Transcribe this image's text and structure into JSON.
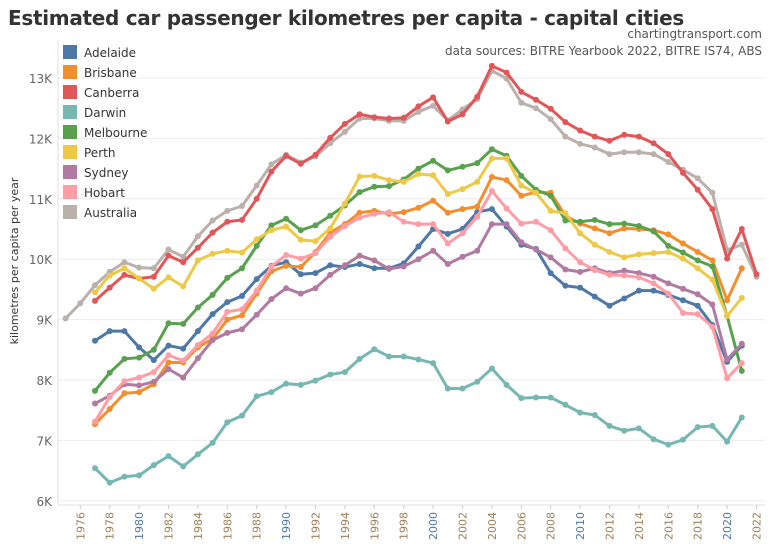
{
  "chart_data": {
    "type": "line",
    "title": "Estimated car passenger kilometres per capita - capital cities",
    "credit": "chartingtransport.com",
    "sources": "data sources: BITRE Yearbook 2022, BITRE IS74, ABS",
    "ylabel": "kilometres per capita per year",
    "xlabel": "",
    "ylim": [
      6,
      13
    ],
    "y_ticks": [
      "6K",
      "7K",
      "8K",
      "9K",
      "10K",
      "11K",
      "12K",
      "13K"
    ],
    "x_ticks": [
      "1976",
      "1978",
      "1980",
      "1982",
      "1984",
      "1986",
      "1988",
      "1990",
      "1992",
      "1994",
      "1996",
      "1998",
      "2000",
      "2002",
      "2004",
      "2006",
      "2008",
      "2010",
      "2012",
      "2014",
      "2016",
      "2018",
      "2020",
      "2022"
    ],
    "grid": true,
    "legend_position": "top-left",
    "series": [
      {
        "name": "Australia",
        "color": "#bab0ac",
        "start": 1975,
        "values": [
          9.02,
          9.27,
          9.57,
          9.79,
          9.95,
          9.86,
          9.85,
          10.16,
          10.04,
          10.38,
          10.64,
          10.8,
          10.88,
          11.22,
          11.57,
          11.73,
          11.6,
          11.7,
          11.92,
          12.11,
          12.33,
          12.33,
          12.29,
          12.29,
          12.44,
          12.54,
          12.3,
          12.48,
          12.65,
          13.12,
          12.99,
          12.59,
          12.5,
          12.32,
          12.03,
          11.91,
          11.85,
          11.74,
          11.77,
          11.77,
          11.74,
          11.61,
          11.48,
          11.34,
          11.1,
          10.15,
          10.24,
          9.71
        ]
      },
      {
        "name": "Adelaide",
        "color": "#4e79a7",
        "start": 1977,
        "values": [
          8.65,
          8.81,
          8.81,
          8.54,
          8.33,
          8.57,
          8.52,
          8.81,
          9.09,
          9.29,
          9.39,
          9.67,
          9.89,
          9.95,
          9.75,
          9.77,
          9.9,
          9.87,
          9.92,
          9.85,
          9.85,
          9.93,
          10.21,
          10.5,
          10.42,
          10.5,
          10.78,
          10.83,
          10.54,
          10.24,
          10.17,
          9.77,
          9.56,
          9.53,
          9.38,
          9.23,
          9.35,
          9.48,
          9.48,
          9.41,
          9.32,
          9.23,
          8.91,
          8.3,
          8.57
        ]
      },
      {
        "name": "Brisbane",
        "color": "#f28e2b",
        "start": 1977,
        "values": [
          7.27,
          7.52,
          7.78,
          7.8,
          7.93,
          8.29,
          8.29,
          8.54,
          8.68,
          9.0,
          9.07,
          9.43,
          9.8,
          9.89,
          9.87,
          10.12,
          10.44,
          10.58,
          10.77,
          10.8,
          10.75,
          10.78,
          10.85,
          10.97,
          10.77,
          10.83,
          10.87,
          11.36,
          11.31,
          11.05,
          11.11,
          11.1,
          10.72,
          10.59,
          10.51,
          10.43,
          10.51,
          10.5,
          10.48,
          10.41,
          10.26,
          10.12,
          9.98,
          9.32,
          9.85
        ]
      },
      {
        "name": "Canberra",
        "color": "#e15759",
        "start": 1977,
        "values": [
          9.31,
          9.53,
          9.74,
          9.68,
          9.71,
          10.06,
          9.95,
          10.19,
          10.44,
          10.62,
          10.65,
          11.0,
          11.45,
          11.71,
          11.58,
          11.73,
          12.01,
          12.24,
          12.4,
          12.35,
          12.33,
          12.34,
          12.53,
          12.68,
          12.28,
          12.4,
          12.69,
          13.2,
          13.09,
          12.77,
          12.64,
          12.49,
          12.27,
          12.13,
          12.03,
          11.96,
          12.06,
          12.03,
          11.92,
          11.74,
          11.43,
          11.15,
          10.83,
          10.01,
          10.5,
          9.75
        ]
      },
      {
        "name": "Darwin",
        "color": "#76b7b2",
        "start": 1977,
        "values": [
          6.54,
          6.3,
          6.4,
          6.42,
          6.59,
          6.74,
          6.57,
          6.77,
          6.96,
          7.3,
          7.41,
          7.73,
          7.8,
          7.94,
          7.92,
          7.99,
          8.09,
          8.13,
          8.35,
          8.51,
          8.39,
          8.39,
          8.34,
          8.28,
          7.86,
          7.86,
          7.97,
          8.19,
          7.92,
          7.7,
          7.71,
          7.71,
          7.59,
          7.46,
          7.42,
          7.24,
          7.16,
          7.2,
          7.02,
          6.93,
          7.01,
          7.22,
          7.24,
          6.98,
          7.38
        ]
      },
      {
        "name": "Melbourne",
        "color": "#59a14f",
        "start": 1977,
        "values": [
          7.82,
          8.12,
          8.35,
          8.37,
          8.5,
          8.94,
          8.93,
          9.2,
          9.41,
          9.69,
          9.85,
          10.22,
          10.56,
          10.67,
          10.48,
          10.56,
          10.72,
          10.89,
          11.11,
          11.2,
          11.21,
          11.32,
          11.5,
          11.63,
          11.47,
          11.53,
          11.59,
          11.82,
          11.71,
          11.38,
          11.15,
          11.05,
          10.64,
          10.62,
          10.65,
          10.58,
          10.59,
          10.55,
          10.46,
          10.22,
          10.11,
          9.98,
          9.88,
          9.06,
          8.15
        ]
      },
      {
        "name": "Perth",
        "color": "#edc948",
        "start": 1977,
        "values": [
          9.45,
          9.73,
          9.85,
          9.68,
          9.51,
          9.7,
          9.55,
          9.98,
          10.09,
          10.14,
          10.11,
          10.33,
          10.48,
          10.54,
          10.32,
          10.3,
          10.51,
          10.92,
          11.37,
          11.38,
          11.31,
          11.28,
          11.41,
          11.39,
          11.08,
          11.16,
          11.28,
          11.67,
          11.67,
          11.22,
          11.1,
          10.8,
          10.76,
          10.43,
          10.24,
          10.12,
          10.03,
          10.08,
          10.1,
          10.12,
          10.01,
          9.85,
          9.66,
          9.06,
          9.36
        ]
      },
      {
        "name": "Sydney",
        "color": "#b07aa1",
        "start": 1977,
        "values": [
          7.61,
          7.74,
          7.93,
          7.91,
          7.97,
          8.18,
          8.04,
          8.36,
          8.66,
          8.78,
          8.84,
          9.08,
          9.34,
          9.52,
          9.43,
          9.52,
          9.74,
          9.9,
          10.06,
          9.98,
          9.84,
          9.88,
          10.0,
          10.14,
          9.92,
          10.04,
          10.14,
          10.58,
          10.58,
          10.28,
          10.16,
          10.03,
          9.83,
          9.79,
          9.85,
          9.77,
          9.81,
          9.77,
          9.71,
          9.6,
          9.51,
          9.42,
          9.25,
          8.34,
          8.6
        ]
      },
      {
        "name": "Hobart",
        "color": "#ff9da7",
        "start": 1977,
        "values": [
          7.31,
          7.72,
          7.98,
          8.04,
          8.13,
          8.41,
          8.32,
          8.58,
          8.77,
          9.13,
          9.17,
          9.48,
          9.88,
          10.07,
          10.01,
          10.1,
          10.37,
          10.55,
          10.69,
          10.75,
          10.78,
          10.62,
          10.58,
          10.58,
          10.26,
          10.43,
          10.7,
          11.13,
          10.84,
          10.59,
          10.62,
          10.48,
          10.18,
          9.95,
          9.82,
          9.74,
          9.73,
          9.7,
          9.6,
          9.43,
          9.11,
          9.09,
          8.88,
          8.03,
          8.28
        ]
      }
    ],
    "legend_order": [
      "Adelaide",
      "Brisbane",
      "Canberra",
      "Darwin",
      "Melbourne",
      "Perth",
      "Sydney",
      "Hobart",
      "Australia"
    ]
  }
}
